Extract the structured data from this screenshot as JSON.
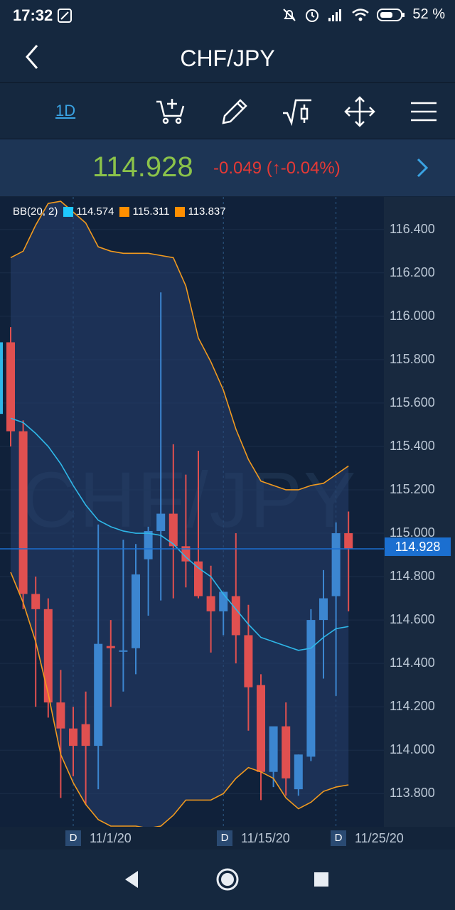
{
  "status": {
    "time": "17:32",
    "battery": "52 %"
  },
  "header": {
    "title": "CHF/JPY"
  },
  "toolbar": {
    "timeframe": "1D"
  },
  "quote": {
    "price": "114.928",
    "change": "-0.049 (↑-0.04%)"
  },
  "legend": {
    "label": "BB(20, 2)",
    "mid": "114.574",
    "upper": "115.311",
    "lower": "113.837",
    "colors": [
      "#1ec8ff",
      "#ff8f00",
      "#ff8f00"
    ]
  },
  "watermark": "CHF/JPY",
  "current_price_label": "114.928",
  "colors": {
    "up": "#3c86d0",
    "down": "#e05050",
    "band": "#f29a1e",
    "mid": "#2fb7e8",
    "accent": "#1b6fd0"
  },
  "icons": [
    "back-icon",
    "add-to-cart-icon",
    "pencil-icon",
    "indicator-icon",
    "move-icon",
    "menu-icon",
    "nav-back-icon",
    "nav-home-icon",
    "nav-recents-icon"
  ],
  "chart_data": {
    "type": "candlestick",
    "y_ticks": [
      "116.400",
      "116.200",
      "116.000",
      "115.800",
      "115.600",
      "115.400",
      "115.200",
      "115.000",
      "114.800",
      "114.600",
      "114.400",
      "114.200",
      "114.000",
      "113.800"
    ],
    "x_labels": [
      {
        "tag": "D",
        "label": "11/1/20"
      },
      {
        "tag": "D",
        "label": "11/15/20"
      },
      {
        "tag": "D",
        "label": "11/25/20"
      }
    ],
    "ylim": [
      113.65,
      116.55
    ],
    "candles": [
      {
        "o": 115.88,
        "h": 115.95,
        "l": 115.4,
        "c": 115.47
      },
      {
        "o": 115.47,
        "h": 115.52,
        "l": 114.65,
        "c": 114.72
      },
      {
        "o": 114.72,
        "h": 114.8,
        "l": 114.2,
        "c": 114.65
      },
      {
        "o": 114.65,
        "h": 114.7,
        "l": 114.15,
        "c": 114.22
      },
      {
        "o": 114.22,
        "h": 114.37,
        "l": 113.78,
        "c": 114.1
      },
      {
        "o": 114.1,
        "h": 114.2,
        "l": 113.88,
        "c": 114.02
      },
      {
        "o": 114.12,
        "h": 114.27,
        "l": 113.75,
        "c": 114.02
      },
      {
        "o": 114.02,
        "h": 115.04,
        "l": 113.82,
        "c": 114.49
      },
      {
        "o": 114.48,
        "h": 114.6,
        "l": 114.2,
        "c": 114.47
      },
      {
        "o": 114.46,
        "h": 114.97,
        "l": 114.27,
        "c": 114.46
      },
      {
        "o": 114.47,
        "h": 114.95,
        "l": 114.35,
        "c": 114.81
      },
      {
        "o": 114.88,
        "h": 115.03,
        "l": 114.62,
        "c": 115.01
      },
      {
        "o": 115.01,
        "h": 116.11,
        "l": 114.69,
        "c": 115.09
      },
      {
        "o": 115.09,
        "h": 115.41,
        "l": 114.7,
        "c": 114.94
      },
      {
        "o": 114.94,
        "h": 115.27,
        "l": 114.75,
        "c": 114.87
      },
      {
        "o": 114.87,
        "h": 115.38,
        "l": 114.7,
        "c": 114.71
      },
      {
        "o": 114.71,
        "h": 114.85,
        "l": 114.45,
        "c": 114.64
      },
      {
        "o": 114.64,
        "h": 114.73,
        "l": 114.53,
        "c": 114.73
      },
      {
        "o": 114.71,
        "h": 115.0,
        "l": 114.4,
        "c": 114.53
      },
      {
        "o": 114.53,
        "h": 114.67,
        "l": 114.09,
        "c": 114.29
      },
      {
        "o": 114.3,
        "h": 114.35,
        "l": 113.77,
        "c": 113.9
      },
      {
        "o": 113.9,
        "h": 114.1,
        "l": 113.83,
        "c": 114.11
      },
      {
        "o": 114.11,
        "h": 114.22,
        "l": 113.79,
        "c": 113.87
      },
      {
        "o": 113.82,
        "h": 113.98,
        "l": 113.79,
        "c": 113.98
      },
      {
        "o": 113.97,
        "h": 114.65,
        "l": 113.95,
        "c": 114.6
      },
      {
        "o": 114.6,
        "h": 114.83,
        "l": 114.33,
        "c": 114.7
      },
      {
        "o": 114.71,
        "h": 115.05,
        "l": 114.25,
        "c": 115.0
      },
      {
        "o": 115.0,
        "h": 115.1,
        "l": 114.64,
        "c": 114.93
      }
    ],
    "bollinger": {
      "upper": [
        116.27,
        116.3,
        116.42,
        116.52,
        116.53,
        116.48,
        116.43,
        116.32,
        116.3,
        116.29,
        116.29,
        116.29,
        116.28,
        116.27,
        116.14,
        115.9,
        115.79,
        115.66,
        115.48,
        115.34,
        115.24,
        115.22,
        115.2,
        115.2,
        115.22,
        115.23,
        115.27,
        115.31
      ],
      "middle": [
        115.53,
        115.51,
        115.46,
        115.4,
        115.32,
        115.22,
        115.13,
        115.06,
        115.03,
        115.01,
        115.0,
        115.0,
        114.99,
        114.95,
        114.89,
        114.84,
        114.8,
        114.72,
        114.65,
        114.58,
        114.52,
        114.5,
        114.48,
        114.46,
        114.47,
        114.52,
        114.56,
        114.57
      ],
      "lower": [
        114.82,
        114.68,
        114.5,
        114.26,
        113.98,
        113.85,
        113.75,
        113.68,
        113.65,
        113.65,
        113.65,
        113.64,
        113.65,
        113.7,
        113.77,
        113.77,
        113.77,
        113.8,
        113.87,
        113.92,
        113.9,
        113.87,
        113.78,
        113.73,
        113.76,
        113.81,
        113.83,
        113.84
      ]
    }
  }
}
